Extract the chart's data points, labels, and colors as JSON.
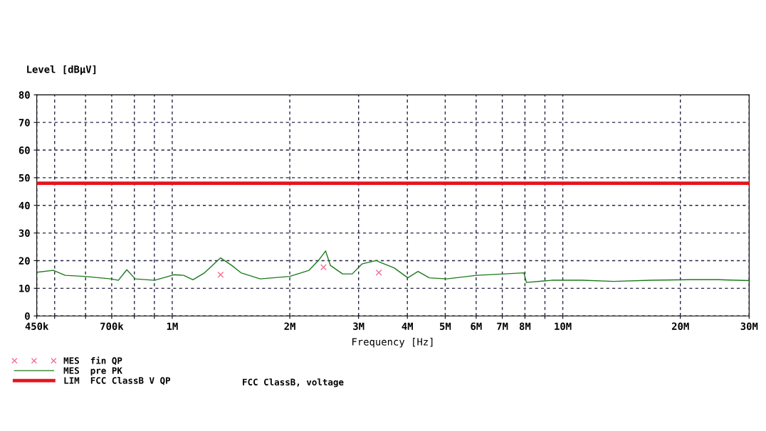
{
  "chart_data": {
    "type": "line",
    "xlabel": "Frequency [Hz]",
    "ylabel": "Level [dBµV]",
    "log": "x",
    "xlim": [
      450000,
      30000000
    ],
    "ylim": [
      0,
      80
    ],
    "xticks": [
      {
        "value": 450000,
        "label": "450k"
      },
      {
        "value": 500000,
        "label": null
      },
      {
        "value": 600000,
        "label": null
      },
      {
        "value": 700000,
        "label": "700k"
      },
      {
        "value": 800000,
        "label": null
      },
      {
        "value": 900000,
        "label": null
      },
      {
        "value": 1000000,
        "label": "1M"
      },
      {
        "value": 2000000,
        "label": "2M"
      },
      {
        "value": 3000000,
        "label": "3M"
      },
      {
        "value": 4000000,
        "label": "4M"
      },
      {
        "value": 5000000,
        "label": "5M"
      },
      {
        "value": 6000000,
        "label": "6M"
      },
      {
        "value": 7000000,
        "label": "7M"
      },
      {
        "value": 8000000,
        "label": "8M"
      },
      {
        "value": 9000000,
        "label": null
      },
      {
        "value": 10000000,
        "label": "10M"
      },
      {
        "value": 20000000,
        "label": "20M"
      },
      {
        "value": 30000000,
        "label": "30M"
      }
    ],
    "yticks": [
      0,
      10,
      20,
      30,
      40,
      50,
      60,
      70,
      80
    ],
    "grid": true,
    "legend": "bottom",
    "series": [
      {
        "name": "MES  fin QP",
        "type": "scatter",
        "marker": "cross",
        "color": "#f07090",
        "x": [
          1330000,
          2440000,
          3380000
        ],
        "values": [
          14.9,
          17.6,
          15.7
        ]
      },
      {
        "name": "MES  pre PK",
        "marker": "none",
        "color": "#1a7a1a",
        "x": [
          452000,
          496000,
          532000,
          596000,
          697000,
          728000,
          765000,
          804000,
          901000,
          1010000,
          1070000,
          1130000,
          1210000,
          1330000,
          1420000,
          1500000,
          1680000,
          2000000,
          2240000,
          2370000,
          2470000,
          2540000,
          2730000,
          2890000,
          3060000,
          3340000,
          3380000,
          3700000,
          4010000,
          4260000,
          4550000,
          5040000,
          6020000,
          7080000,
          7950000,
          8070000,
          9360000,
          11200000,
          13500000,
          16900000,
          21000000,
          25100000,
          30000000
        ],
        "values": [
          15.8,
          16.5,
          14.7,
          14.3,
          13.4,
          12.9,
          16.7,
          13.4,
          12.9,
          14.9,
          14.7,
          13.1,
          15.6,
          21.0,
          18.3,
          15.6,
          13.4,
          14.3,
          16.5,
          20.1,
          23.5,
          18.3,
          15.2,
          15.2,
          18.8,
          20.1,
          19.6,
          17.4,
          13.8,
          16.1,
          13.8,
          13.4,
          14.7,
          15.2,
          15.6,
          12.1,
          12.9,
          12.9,
          12.5,
          12.9,
          13.1,
          13.1,
          12.8
        ]
      },
      {
        "name": "LIM  FCC ClassB V QP",
        "marker": "none",
        "color": "#e8141c",
        "x": [
          450000,
          30000000
        ],
        "values": [
          48,
          48
        ]
      }
    ],
    "annotations": [
      "FCC ClassB, voltage"
    ]
  }
}
